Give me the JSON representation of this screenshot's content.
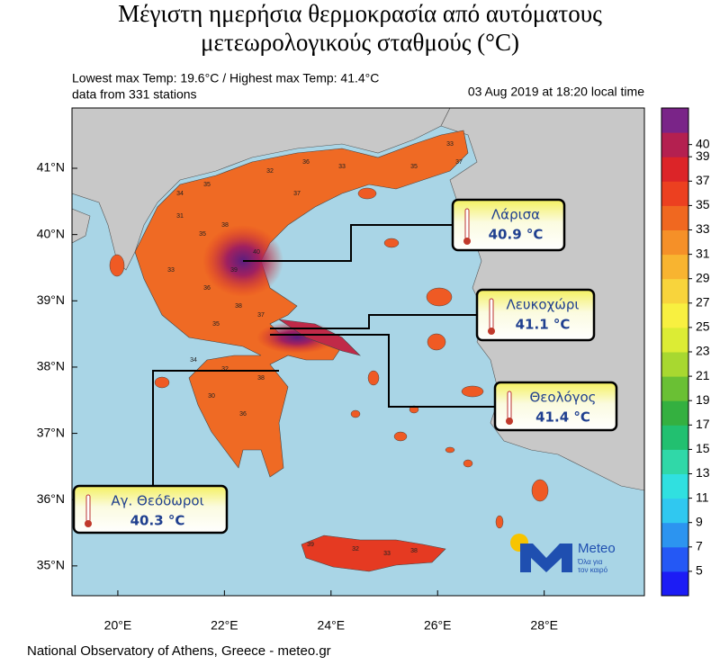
{
  "header": {
    "title_line1": "Μέγιστη ημερήσια θερμοκρασία από αυτόματους",
    "title_line2": "μετεωρολογικούς σταθμούς (°C)",
    "extremes": "Lowest max Temp: 19.6°C / Highest max Temp: 41.4°C",
    "stations": "data from 331 stations",
    "timestamp": "03 Aug 2019 at 18:20 local time"
  },
  "map": {
    "lonlim": [
      19.14,
      29.88
    ],
    "latlim": [
      34.55,
      41.91
    ],
    "lon_ticks": [
      {
        "value": 20,
        "label": "20°E"
      },
      {
        "value": 22,
        "label": "22°E"
      },
      {
        "value": 24,
        "label": "24°E"
      },
      {
        "value": 26,
        "label": "26°E"
      },
      {
        "value": 28,
        "label": "28°E"
      }
    ],
    "lat_ticks": [
      {
        "value": 35,
        "label": "35°N"
      },
      {
        "value": 36,
        "label": "36°N"
      },
      {
        "value": 37,
        "label": "37°N"
      },
      {
        "value": 38,
        "label": "38°N"
      },
      {
        "value": 39,
        "label": "39°N"
      },
      {
        "value": 40,
        "label": "40°N"
      },
      {
        "value": 41,
        "label": "41°N"
      }
    ],
    "station_values": [
      34,
      35,
      32,
      36,
      33,
      37,
      38,
      40,
      39,
      35,
      31,
      33,
      36,
      38,
      37,
      35,
      34,
      32,
      30,
      36,
      38,
      33,
      35,
      37,
      39,
      32,
      33,
      38
    ]
  },
  "colorbar": {
    "lim": [
      3,
      43
    ],
    "ticks": [
      5,
      7,
      9,
      11,
      13,
      15,
      17,
      19,
      21,
      23,
      25,
      27,
      29,
      31,
      33,
      35,
      37,
      39,
      40
    ],
    "colors": [
      "#1c1cf5",
      "#2458f5",
      "#2c94f0",
      "#30c8f0",
      "#30e0e0",
      "#30d8a8",
      "#22c070",
      "#34b040",
      "#6ac034",
      "#a8d830",
      "#dcec34",
      "#f8f040",
      "#f8d43c",
      "#f8b430",
      "#f59028",
      "#f06820",
      "#ec4020",
      "#dc2428",
      "#b42050",
      "#7a2488"
    ]
  },
  "callouts": [
    {
      "name": "Λάρισα",
      "temp": "40.9 °C"
    },
    {
      "name": "Λευκοχώρι",
      "temp": "41.1 °C"
    },
    {
      "name": "Θεολόγος",
      "temp": "41.4 °C"
    },
    {
      "name": "Αγ. Θεόδωροι",
      "temp": "40.3 °C"
    }
  ],
  "logo": {
    "brand": "Meteo",
    "slogan1": "Όλα για",
    "slogan2": "τον καιρό"
  },
  "footer": "National Observatory of Athens, Greece - meteo.gr"
}
